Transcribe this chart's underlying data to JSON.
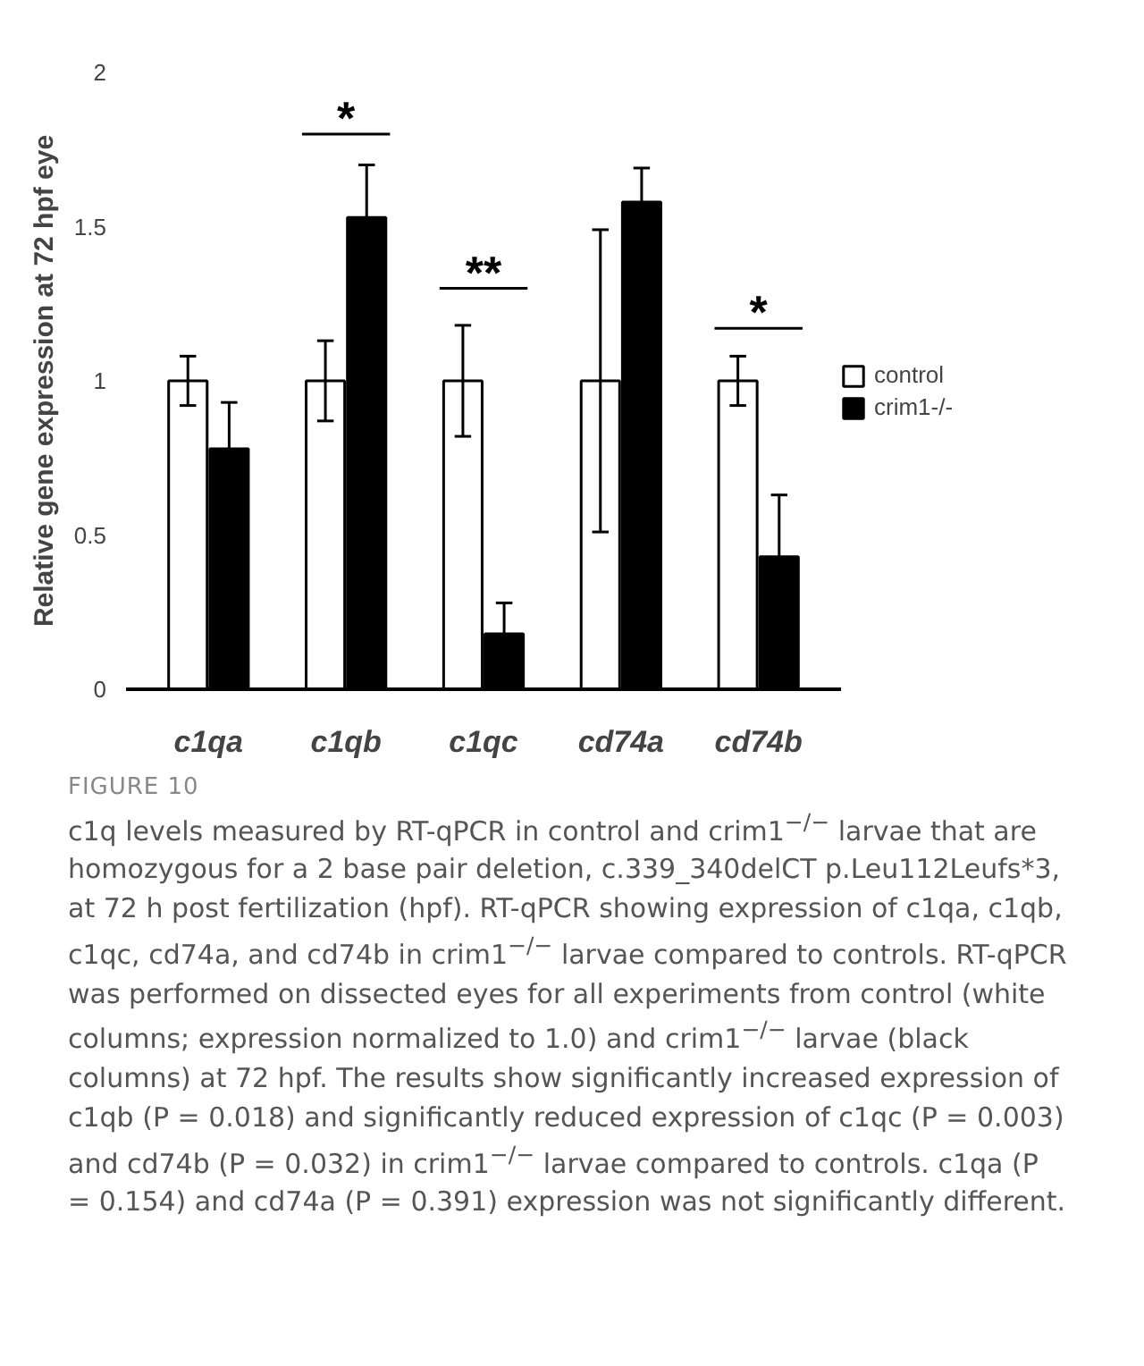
{
  "chart_data": {
    "type": "bar",
    "ylabel": "Relative gene expression at 72 hpf eye",
    "categories": [
      "c1qa",
      "c1qb",
      "c1qc",
      "cd74a",
      "cd74b"
    ],
    "series": [
      {
        "name": "control",
        "color": "#ffffff",
        "values": [
          1,
          1,
          1,
          1,
          1
        ],
        "errors": [
          0.08,
          0.13,
          0.18,
          0.49,
          0.08
        ]
      },
      {
        "name": "crim1-/-",
        "color": "#000000",
        "values": [
          0.78,
          1.53,
          0.18,
          1.58,
          0.43
        ],
        "errors": [
          0.15,
          0.17,
          0.1,
          0.11,
          0.2
        ]
      }
    ],
    "ylim": [
      0,
      2
    ],
    "yticks": [
      0,
      0.5,
      1,
      1.5,
      2
    ],
    "grid": false,
    "legend": "right",
    "annotations": [
      "*",
      "**",
      "*",
      "FIGURE 10",
      "c1q levels measured by RT-qPCR in control and crim1$^{−/−}$ larvae that are homozygous for a 2 base pair deletion, c.339_340delCT p.Leu112Leufs*3, at 72 h post fertilization (hpf). RT-qPCR showing expression of c1qa, c1qb, c1qc, cd74a, and cd74b in crim1$^{−/−}$ larvae compared to controls. RT-qPCR was performed on dissected eyes for all experiments from control (white columns; expression normalized to 1.0) and crim1$^{−/−}$ larvae (black columns) at 72 hpf. The results show significantly increased expression of c1qb (P = 0.018) and significantly reduced expression of c1qc (P = 0.003) and cd74b (P = 0.032) in crim1$^{−/−}$ larvae compared to controls. c1qa (P = 0.154) and cd74a (P = 0.391) expression was not significantly different."
    ]
  }
}
